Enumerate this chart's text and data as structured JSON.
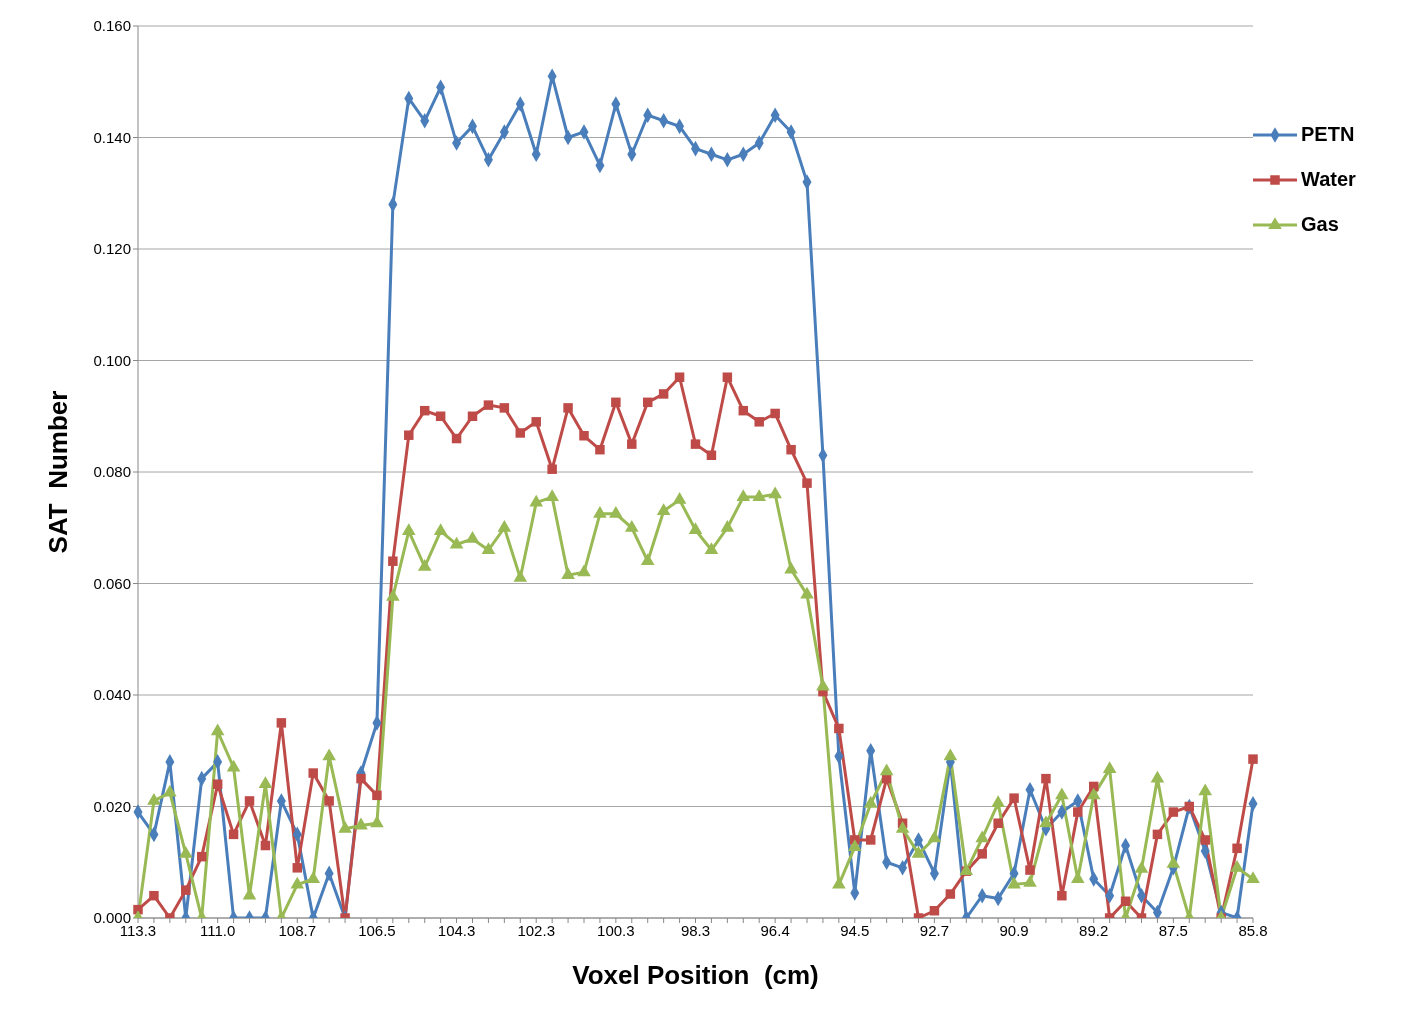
{
  "chart_data": {
    "type": "line",
    "xlabel": "Voxel Position  (cm)",
    "ylabel": "SAT  Number",
    "categories": [
      "113.3",
      null,
      null,
      null,
      null,
      "111.0",
      null,
      null,
      null,
      null,
      "108.7",
      null,
      null,
      null,
      null,
      "106.5",
      null,
      null,
      null,
      null,
      "104.3",
      null,
      null,
      null,
      null,
      "102.3",
      null,
      null,
      null,
      null,
      "100.3",
      null,
      null,
      null,
      null,
      "98.3",
      null,
      null,
      null,
      null,
      "96.4",
      null,
      null,
      null,
      null,
      "94.5",
      null,
      null,
      null,
      null,
      "92.7",
      null,
      null,
      null,
      null,
      "90.9",
      null,
      null,
      null,
      null,
      "89.2",
      null,
      null,
      null,
      null,
      "87.5",
      null,
      null,
      null,
      null,
      "85.8"
    ],
    "series": [
      {
        "name": "PETN",
        "color": "#4a7ebb",
        "marker": "diamond",
        "values": [
          0.019,
          0.015,
          0.028,
          0,
          0.025,
          0.028,
          0,
          0,
          0,
          0.021,
          0.015,
          0,
          0.008,
          0,
          0.026,
          0.035,
          0.128,
          0.147,
          0.143,
          0.149,
          0.139,
          0.142,
          0.136,
          0.141,
          0.146,
          0.137,
          0.151,
          0.14,
          0.141,
          0.135,
          0.146,
          0.137,
          0.144,
          0.143,
          0.142,
          0.138,
          0.137,
          0.136,
          0.137,
          0.139,
          0.144,
          0.141,
          0.132,
          0.083,
          0.029,
          0.0045,
          0.03,
          0.01,
          0.009,
          0.014,
          0.008,
          0.028,
          0,
          0.004,
          0.0035,
          0.008,
          0.023,
          0.016,
          0.019,
          0.021,
          0.007,
          0.004,
          0.013,
          0.004,
          0.001,
          0.009,
          0.02,
          0.012,
          0.001,
          0,
          0.0205
        ]
      },
      {
        "name": "Water",
        "color": "#be4b48",
        "marker": "square",
        "values": [
          0.0015,
          0.004,
          0,
          0.005,
          0.011,
          0.024,
          0.015,
          0.021,
          0.013,
          0.035,
          0.009,
          0.026,
          0.021,
          0,
          0.025,
          0.022,
          0.064,
          0.0866,
          0.091,
          0.09,
          0.086,
          0.09,
          0.092,
          0.0915,
          0.087,
          0.089,
          0.0805,
          0.0915,
          0.0865,
          0.084,
          0.0925,
          0.085,
          0.0925,
          0.094,
          0.097,
          0.085,
          0.083,
          0.097,
          0.091,
          0.089,
          0.0905,
          0.084,
          0.078,
          0.0406,
          0.034,
          0.014,
          0.014,
          0.025,
          0.017,
          0,
          0.0013,
          0.0043,
          0.0084,
          0.0115,
          0.017,
          0.0215,
          0.0086,
          0.025,
          0.004,
          0.019,
          0.0236,
          0,
          0.003,
          0,
          0.015,
          0.019,
          0.02,
          0.014,
          0,
          0.0125,
          0.0285
        ]
      },
      {
        "name": "Gas",
        "color": "#98b954",
        "marker": "triangle",
        "values": [
          0,
          0.021,
          0.0225,
          0.0115,
          0,
          0.0335,
          0.027,
          0.004,
          0.024,
          0,
          0.006,
          0.007,
          0.029,
          0.016,
          0.0166,
          0.017,
          0.0576,
          0.0694,
          0.063,
          0.0694,
          0.067,
          0.068,
          0.066,
          0.07,
          0.061,
          0.0745,
          0.0755,
          0.0615,
          0.062,
          0.0725,
          0.0725,
          0.07,
          0.064,
          0.073,
          0.075,
          0.0696,
          0.066,
          0.07,
          0.0755,
          0.0755,
          0.076,
          0.0625,
          0.058,
          0.0415,
          0.006,
          0.0127,
          0.0205,
          0.0263,
          0.016,
          0.0115,
          0.0143,
          0.029,
          0.0084,
          0.0143,
          0.0206,
          0.006,
          0.0063,
          0.017,
          0.022,
          0.007,
          0.022,
          0.0267,
          0,
          0.0088,
          0.025,
          0.0097,
          0,
          0.0227,
          0,
          0.009,
          0.007
        ]
      }
    ],
    "ylim": [
      0,
      0.16
    ],
    "yticks": [
      {
        "value": 0,
        "label": "0.000"
      },
      {
        "value": 0.02,
        "label": "0.020"
      },
      {
        "value": 0.04,
        "label": "0.040"
      },
      {
        "value": 0.06,
        "label": "0.060"
      },
      {
        "value": 0.08,
        "label": "0.080"
      },
      {
        "value": 0.1,
        "label": "0.100"
      },
      {
        "value": 0.12,
        "label": "0.120"
      },
      {
        "value": 0.14,
        "label": "0.140"
      },
      {
        "value": 0.16,
        "label": "0.160"
      }
    ],
    "grid": "y",
    "legend": "right",
    "line_style": "solid"
  }
}
